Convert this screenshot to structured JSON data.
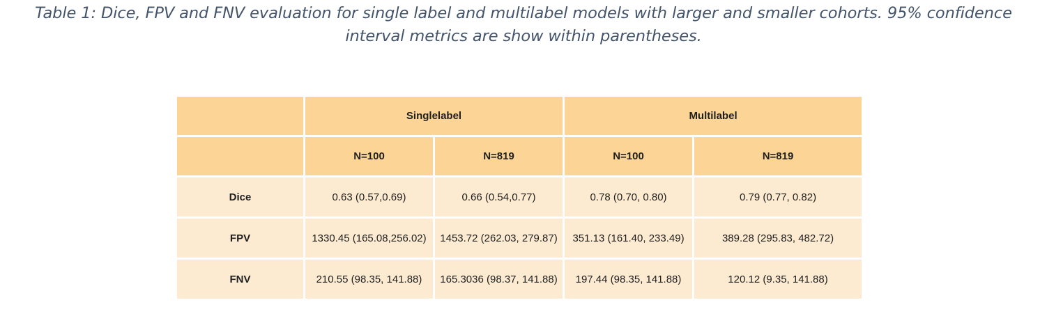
{
  "caption": {
    "line1": "Table 1: Dice, FPV and FNV evaluation for single label and multilabel models with larger and smaller cohorts. 95% confidence",
    "line2": "interval metrics are show within parentheses."
  },
  "table": {
    "groups": {
      "singlelabel": "Singlelabel",
      "multilabel": "Multilabel"
    },
    "subheaders": [
      "N=100",
      "N=819",
      "N=100",
      "N=819"
    ],
    "rows": [
      {
        "metric": "Dice",
        "values": [
          "0.63 (0.57,0.69)",
          "0.66 (0.54,0.77)",
          "0.78 (0.70, 0.80)",
          "0.79 (0.77, 0.82)"
        ]
      },
      {
        "metric": "FPV",
        "values": [
          "1330.45 (165.08,256.02)",
          "1453.72 (262.03, 279.87)",
          "351.13 (161.40, 233.49)",
          "389.28 (295.83, 482.72)"
        ]
      },
      {
        "metric": "FNV",
        "values": [
          "210.55 (98.35, 141.88)",
          "165.3036 (98.37, 141.88)",
          "197.44 (98.35, 141.88)",
          "120.12 (9.35, 141.88)"
        ]
      }
    ]
  },
  "colors": {
    "caption_text": "#44546a",
    "header_fill": "#fcd596",
    "body_fill": "#fdebd1"
  }
}
